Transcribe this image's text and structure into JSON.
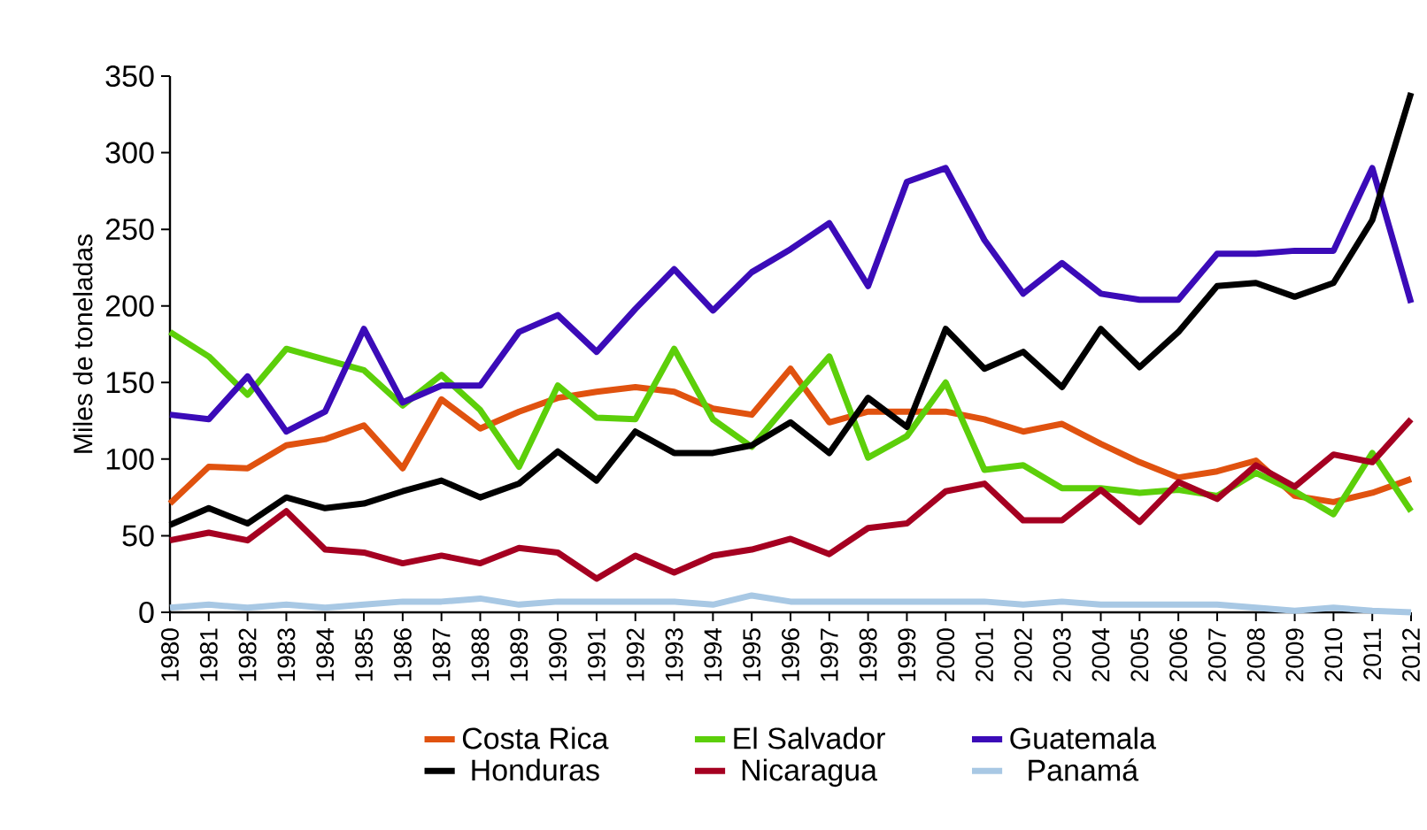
{
  "chart_data": {
    "type": "line",
    "ylabel": "Miles de toneladas",
    "categories": [
      "1980",
      "1981",
      "1982",
      "1983",
      "1984",
      "1985",
      "1986",
      "1987",
      "1988",
      "1989",
      "1990",
      "1991",
      "1992",
      "1993",
      "1994",
      "1995",
      "1996",
      "1997",
      "1998",
      "1999",
      "2000",
      "2001",
      "2002",
      "2003",
      "2004",
      "2005",
      "2006",
      "2007",
      "2008",
      "2009",
      "2010",
      "2011",
      "2012"
    ],
    "ylim": [
      0,
      350
    ],
    "yticks": [
      0,
      50,
      100,
      150,
      200,
      250,
      300,
      350
    ],
    "grid": false,
    "legend": "bottom",
    "marker": "none",
    "line_style": "solid",
    "series": [
      {
        "name": "Costa Rica",
        "color": "#e0520f",
        "values": [
          71,
          95,
          94,
          109,
          113,
          122,
          94,
          139,
          120,
          131,
          140,
          144,
          147,
          144,
          133,
          129,
          159,
          124,
          131,
          131,
          131,
          126,
          118,
          123,
          110,
          98,
          88,
          92,
          99,
          76,
          72,
          78,
          87
        ]
      },
      {
        "name": "El Salvador",
        "color": "#5ccf0a",
        "values": [
          183,
          167,
          142,
          172,
          165,
          158,
          135,
          155,
          132,
          95,
          148,
          127,
          126,
          172,
          126,
          108,
          138,
          167,
          101,
          115,
          150,
          93,
          96,
          81,
          81,
          78,
          80,
          76,
          91,
          79,
          64,
          104,
          66
        ]
      },
      {
        "name": "Guatemala",
        "color": "#3b0bb8",
        "values": [
          129,
          126,
          154,
          118,
          131,
          185,
          137,
          148,
          148,
          183,
          194,
          170,
          198,
          224,
          197,
          222,
          237,
          254,
          213,
          281,
          290,
          243,
          208,
          228,
          208,
          204,
          204,
          234,
          234,
          236,
          236,
          290,
          202
        ]
      },
      {
        "name": "Honduras",
        "color": "#000000",
        "values": [
          57,
          68,
          58,
          75,
          68,
          71,
          79,
          86,
          75,
          84,
          105,
          86,
          118,
          104,
          104,
          109,
          124,
          104,
          140,
          121,
          185,
          159,
          170,
          147,
          185,
          160,
          183,
          213,
          215,
          206,
          215,
          256,
          339
        ]
      },
      {
        "name": "Nicaragua",
        "color": "#a50021",
        "values": [
          47,
          52,
          47,
          66,
          41,
          39,
          32,
          37,
          32,
          42,
          39,
          22,
          37,
          26,
          37,
          41,
          48,
          38,
          55,
          58,
          79,
          84,
          60,
          60,
          80,
          59,
          85,
          74,
          96,
          82,
          103,
          98,
          126
        ]
      },
      {
        "name": "Panamá",
        "color": "#a8c8e4",
        "values": [
          3,
          5,
          3,
          5,
          3,
          5,
          7,
          7,
          9,
          5,
          7,
          7,
          7,
          7,
          5,
          11,
          7,
          7,
          7,
          7,
          7,
          7,
          5,
          7,
          5,
          5,
          5,
          5,
          3,
          1,
          3,
          1,
          0
        ]
      }
    ]
  }
}
